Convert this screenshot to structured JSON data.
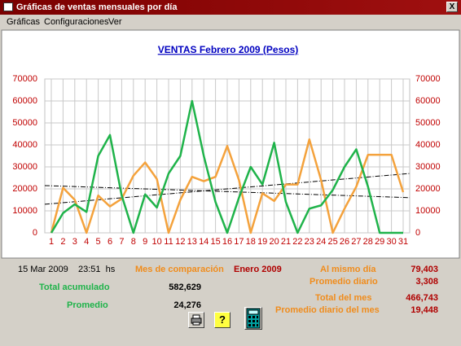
{
  "window": {
    "title": "Gráficas de ventas mensuales por día",
    "close": "X"
  },
  "menu": [
    "Gráficas",
    "Configuraciones",
    "Ver"
  ],
  "chart_data": {
    "type": "line",
    "title": "VENTAS  Febrero 2009  (Pesos)",
    "categories": [
      "1",
      "2",
      "3",
      "4",
      "5",
      "6",
      "7",
      "8",
      "9",
      "10",
      "11",
      "12",
      "13",
      "14",
      "15",
      "16",
      "17",
      "18",
      "19",
      "20",
      "21",
      "22",
      "23",
      "24",
      "25",
      "26",
      "27",
      "28",
      "29",
      "30",
      "31"
    ],
    "series": [
      {
        "color": "#f4a23c",
        "values": [
          0,
          20500,
          15000,
          0,
          17000,
          12000,
          15500,
          26000,
          32000,
          24500,
          0,
          15000,
          25500,
          23500,
          25500,
          39500,
          24000,
          0,
          18000,
          14500,
          22000,
          22000,
          42500,
          24000,
          0,
          11000,
          21000,
          35500,
          35500,
          35500,
          18500
        ]
      },
      {
        "color": "#1fb34a",
        "values": [
          0,
          9000,
          13000,
          9500,
          35000,
          44500,
          17000,
          0,
          17500,
          11500,
          27000,
          35000,
          60000,
          35000,
          14000,
          0,
          16000,
          30000,
          22000,
          41000,
          14000,
          0,
          11000,
          12500,
          19500,
          30000,
          38000,
          21000,
          0,
          0,
          0
        ]
      }
    ],
    "trendlines": [
      {
        "color": "#000000",
        "values": [
          21500,
          16000
        ]
      },
      {
        "color": "#000000",
        "values": [
          13000,
          27000
        ]
      }
    ],
    "ylim": [
      0,
      70000
    ],
    "yticks": [
      0,
      10000,
      20000,
      30000,
      40000,
      50000,
      60000,
      70000
    ],
    "grid": true
  },
  "info": {
    "date": "15 Mar 2009    23:51  hs",
    "comparison_label": "Mes de comparación",
    "comparison_month": "Enero 2009",
    "same_day_label": "Al mismo día",
    "same_day": "79,403",
    "daily_avg_label": "Promedio diario",
    "daily_avg": "3,308",
    "total_label": "Total acumulado",
    "total": "582,629",
    "month_total_label": "Total del mes",
    "month_total": "466,743",
    "month_avg_label": "Promedio diario del mes",
    "month_avg": "19,448",
    "avg_label": "Promedio",
    "avg": "24,276",
    "help": "?"
  }
}
